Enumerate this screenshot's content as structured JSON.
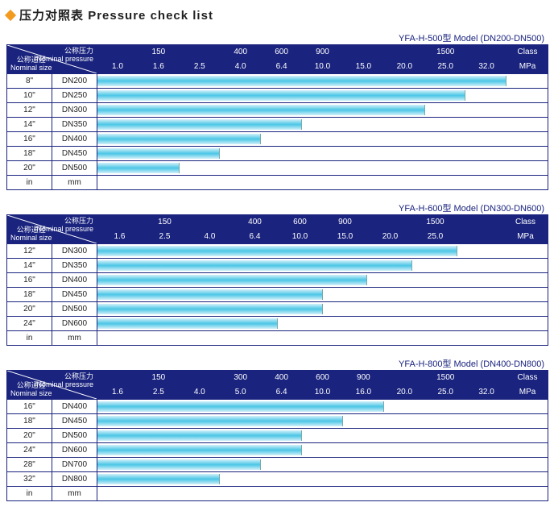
{
  "page_title_cn": "压力对照表",
  "page_title_en": "Pressure check list",
  "corner": {
    "nominal_pressure_cn": "公称压力",
    "nominal_pressure_en": "Nominal pressure",
    "nominal_size_cn": "公称通径",
    "nominal_size_en": "Nominal size"
  },
  "class_label": "Class",
  "mpa_label": "MPa",
  "footer_in": "in",
  "footer_mm": "mm",
  "header_bg": "#1a237e",
  "bar_gradient": [
    "#d1f0f9",
    "#4bc6e6",
    "#d1f0f9"
  ],
  "charts": [
    {
      "model": "YFA-H-500型  Model (DN200-DN500)",
      "n_cols": 11,
      "class_row": [
        "",
        "150",
        "",
        "400",
        "600",
        "900",
        "",
        "",
        "1500",
        "",
        ""
      ],
      "mpa_row": [
        "1.0",
        "1.6",
        "2.5",
        "4.0",
        "6.4",
        "10.0",
        "15.0",
        "20.0",
        "25.0",
        "32.0",
        ""
      ],
      "rows": [
        {
          "in": "8\"",
          "mm": "DN200",
          "span": 10
        },
        {
          "in": "10\"",
          "mm": "DN250",
          "span": 9
        },
        {
          "in": "12\"",
          "mm": "DN300",
          "span": 8
        },
        {
          "in": "14\"",
          "mm": "DN350",
          "span": 5
        },
        {
          "in": "16\"",
          "mm": "DN400",
          "span": 4
        },
        {
          "in": "18\"",
          "mm": "DN450",
          "span": 3
        },
        {
          "in": "20\"",
          "mm": "DN500",
          "span": 2
        }
      ]
    },
    {
      "model": "YFA-H-600型  Model (DN300-DN600)",
      "n_cols": 10,
      "class_row": [
        "",
        "150",
        "",
        "400",
        "600",
        "900",
        "",
        "1500",
        "",
        ""
      ],
      "mpa_row": [
        "1.6",
        "2.5",
        "4.0",
        "6.4",
        "10.0",
        "15.0",
        "20.0",
        "25.0",
        "",
        ""
      ],
      "rows": [
        {
          "in": "12\"",
          "mm": "DN300",
          "span": 8
        },
        {
          "in": "14\"",
          "mm": "DN350",
          "span": 7
        },
        {
          "in": "16\"",
          "mm": "DN400",
          "span": 6
        },
        {
          "in": "18\"",
          "mm": "DN450",
          "span": 5
        },
        {
          "in": "20\"",
          "mm": "DN500",
          "span": 5
        },
        {
          "in": "24\"",
          "mm": "DN600",
          "span": 4
        }
      ]
    },
    {
      "model": "YFA-H-800型  Model (DN400-DN800)",
      "n_cols": 11,
      "class_row": [
        "",
        "150",
        "",
        "300",
        "400",
        "600",
        "900",
        "",
        "1500",
        "",
        ""
      ],
      "mpa_row": [
        "1.6",
        "2.5",
        "4.0",
        "5.0",
        "6.4",
        "10.0",
        "16.0",
        "20.0",
        "25.0",
        "32.0",
        ""
      ],
      "rows": [
        {
          "in": "16\"",
          "mm": "DN400",
          "span": 7
        },
        {
          "in": "18\"",
          "mm": "DN450",
          "span": 6
        },
        {
          "in": "20\"",
          "mm": "DN500",
          "span": 5
        },
        {
          "in": "24\"",
          "mm": "DN600",
          "span": 5
        },
        {
          "in": "28\"",
          "mm": "DN700",
          "span": 4
        },
        {
          "in": "32\"",
          "mm": "DN800",
          "span": 3
        }
      ]
    }
  ]
}
